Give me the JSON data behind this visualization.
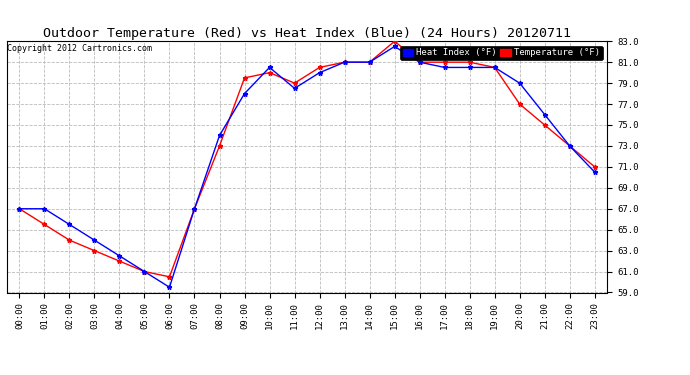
{
  "title": "Outdoor Temperature (Red) vs Heat Index (Blue) (24 Hours) 20120711",
  "copyright": "Copyright 2012 Cartronics.com",
  "x_labels": [
    "00:00",
    "01:00",
    "02:00",
    "03:00",
    "04:00",
    "05:00",
    "06:00",
    "07:00",
    "08:00",
    "09:00",
    "10:00",
    "11:00",
    "12:00",
    "13:00",
    "14:00",
    "15:00",
    "16:00",
    "17:00",
    "18:00",
    "19:00",
    "20:00",
    "21:00",
    "22:00",
    "23:00"
  ],
  "temperature": [
    67.0,
    65.5,
    64.0,
    63.0,
    62.0,
    61.0,
    60.5,
    67.0,
    73.0,
    79.5,
    80.0,
    79.0,
    80.5,
    81.0,
    81.0,
    83.0,
    81.0,
    81.0,
    81.0,
    80.5,
    77.0,
    75.0,
    73.0,
    71.0
  ],
  "heat_index": [
    67.0,
    67.0,
    65.5,
    64.0,
    62.5,
    61.0,
    59.5,
    67.0,
    74.0,
    78.0,
    80.5,
    78.5,
    80.0,
    81.0,
    81.0,
    82.5,
    81.0,
    80.5,
    80.5,
    80.5,
    79.0,
    76.0,
    73.0,
    70.5
  ],
  "ylim": [
    59.0,
    83.0
  ],
  "yticks": [
    59.0,
    61.0,
    63.0,
    65.0,
    67.0,
    69.0,
    71.0,
    73.0,
    75.0,
    77.0,
    79.0,
    81.0,
    83.0
  ],
  "temp_color": "#ff0000",
  "heat_color": "#0000ff",
  "background_color": "#ffffff",
  "grid_color": "#bbbbbb",
  "title_fontsize": 9.5,
  "legend_heat_label": "Heat Index (°F)",
  "legend_temp_label": "Temperature (°F)"
}
